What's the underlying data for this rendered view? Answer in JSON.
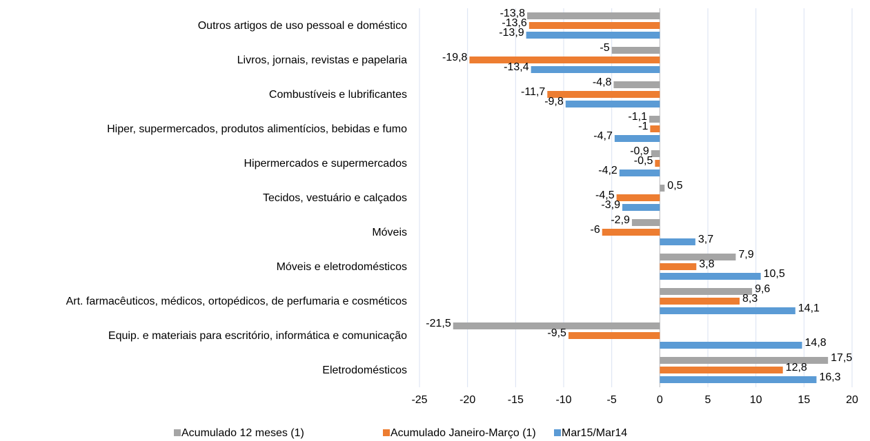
{
  "chart_data": {
    "type": "barh",
    "categories": [
      "Outros artigos de uso pessoal e doméstico",
      "Livros, jornais, revistas e papelaria",
      "Combustíveis e lubrificantes",
      "Hiper, supermercados, produtos alimentícios, bebidas e fumo",
      "Hipermercados e supermercados",
      "Tecidos, vestuário e calçados",
      "Móveis",
      "Móveis e eletrodomésticos",
      "Art. farmacêuticos, médicos, ortopédicos, de perfumaria e cosméticos",
      "Equip. e materiais para escritório, informática e comunicação",
      "Eletrodomésticos"
    ],
    "series": [
      {
        "name": "Acumulado 12 meses (1)",
        "color": "#a5a5a5",
        "values": [
          -13.8,
          -5,
          -4.8,
          -1.1,
          -0.9,
          0.5,
          -2.9,
          7.9,
          9.6,
          -21.5,
          17.5
        ],
        "value_labels": [
          "-13,8",
          "-5",
          "-4,8",
          "-1,1",
          "-0,9",
          "0,5",
          "-2,9",
          "7,9",
          "9,6",
          "-21,5",
          "17,5"
        ]
      },
      {
        "name": "Acumulado Janeiro-Março (1)",
        "color": "#ed7d31",
        "values": [
          -13.6,
          -19.8,
          -11.7,
          -1,
          -0.5,
          -4.5,
          -6,
          3.8,
          8.3,
          -9.5,
          12.8
        ],
        "value_labels": [
          "-13,6",
          "-19,8",
          "-11,7",
          "-1",
          "-0,5",
          "-4,5",
          "-6",
          "3,8",
          "8,3",
          "-9,5",
          "12,8"
        ]
      },
      {
        "name": "Mar15/Mar14",
        "color": "#5b9bd5",
        "values": [
          -13.9,
          -13.4,
          -9.8,
          -4.7,
          -4.2,
          -3.9,
          3.7,
          10.5,
          14.1,
          14.8,
          16.3
        ],
        "value_labels": [
          "-13,9",
          "-13,4",
          "-9,8",
          "-4,7",
          "-4,2",
          "-3,9",
          "3,7",
          "10,5",
          "14,1",
          "14,8",
          "16,3"
        ]
      }
    ],
    "xlim": [
      -25,
      20
    ],
    "xticks": [
      -25,
      -20,
      -15,
      -10,
      -5,
      0,
      5,
      10,
      15,
      20
    ],
    "grid": true,
    "legend": "bottom"
  }
}
